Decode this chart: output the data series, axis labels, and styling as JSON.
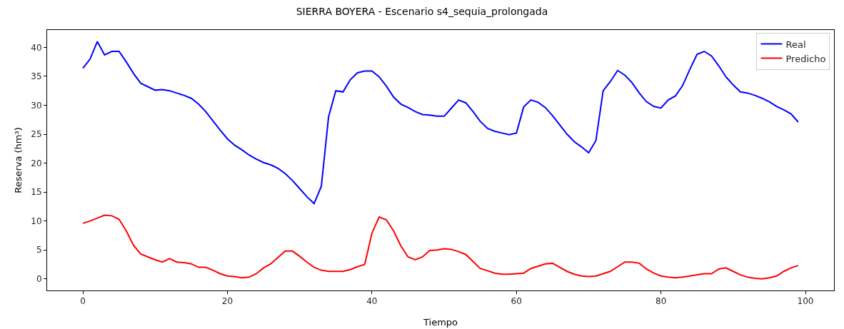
{
  "chart_data": {
    "type": "line",
    "title": "SIERRA BOYERA - Escenario s4_sequia_prolongada",
    "xlabel": "Tiempo",
    "ylabel": "Reserva (hm³)",
    "x": [
      0,
      1,
      2,
      3,
      4,
      5,
      6,
      7,
      8,
      9,
      10,
      11,
      12,
      13,
      14,
      15,
      16,
      17,
      18,
      19,
      20,
      21,
      22,
      23,
      24,
      25,
      26,
      27,
      28,
      29,
      30,
      31,
      32,
      33,
      34,
      35,
      36,
      37,
      38,
      39,
      40,
      41,
      42,
      43,
      44,
      45,
      46,
      47,
      48,
      49,
      50,
      51,
      52,
      53,
      54,
      55,
      56,
      57,
      58,
      59,
      60,
      61,
      62,
      63,
      64,
      65,
      66,
      67,
      68,
      69,
      70,
      71,
      72,
      73,
      74,
      75,
      76,
      77,
      78,
      79,
      80,
      81,
      82,
      83,
      84,
      85,
      86,
      87,
      88,
      89,
      90,
      91,
      92,
      93,
      94,
      95,
      96,
      97,
      98,
      99
    ],
    "series": [
      {
        "name": "Real",
        "color": "#0000ff",
        "values": [
          36.4,
          38,
          41,
          38.7,
          39.3,
          39.3,
          37.5,
          35.5,
          33.8,
          33.2,
          32.6,
          32.7,
          32.5,
          32.1,
          31.7,
          31.2,
          30.2,
          28.9,
          27.3,
          25.7,
          24.2,
          23.1,
          22.3,
          21.4,
          20.7,
          20.1,
          19.7,
          19.1,
          18.2,
          17.0,
          15.6,
          14.2,
          13.0,
          16.0,
          28.0,
          32.5,
          32.3,
          34.4,
          35.6,
          35.9,
          35.9,
          34.9,
          33.3,
          31.4,
          30.2,
          29.6,
          28.9,
          28.4,
          28.3,
          28.1,
          28.1,
          29.5,
          30.9,
          30.4,
          28.9,
          27.2,
          26.0,
          25.5,
          25.2,
          24.9,
          25.2,
          29.7,
          30.9,
          30.5,
          29.6,
          28.2,
          26.6,
          25.0,
          23.7,
          22.8,
          21.8,
          23.9,
          32.5,
          34.1,
          36.0,
          35.2,
          33.9,
          32.1,
          30.6,
          29.8,
          29.5,
          30.9,
          31.6,
          33.4,
          36.2,
          38.8,
          39.3,
          38.5,
          36.8,
          34.9,
          33.5,
          32.3,
          32.1,
          31.7,
          31.2,
          30.6,
          29.8,
          29.2,
          28.5,
          27.1
        ]
      },
      {
        "name": "Predicho",
        "color": "#ff0000",
        "values": [
          9.6,
          10.0,
          10.5,
          11.0,
          10.9,
          10.3,
          8.3,
          5.8,
          4.3,
          3.8,
          3.3,
          2.9,
          3.5,
          2.9,
          2.8,
          2.6,
          2.0,
          2.0,
          1.5,
          0.9,
          0.5,
          0.4,
          0.2,
          0.3,
          0.9,
          1.9,
          2.6,
          3.7,
          4.8,
          4.8,
          3.9,
          2.9,
          2.0,
          1.5,
          1.3,
          1.3,
          1.3,
          1.6,
          2.1,
          2.5,
          7.9,
          10.7,
          10.2,
          8.3,
          5.7,
          3.8,
          3.3,
          3.8,
          4.9,
          5.0,
          5.2,
          5.1,
          4.7,
          4.2,
          3.0,
          1.8,
          1.4,
          1.0,
          0.8,
          0.8,
          0.9,
          1.0,
          1.8,
          2.2,
          2.6,
          2.7,
          2.0,
          1.3,
          0.8,
          0.5,
          0.4,
          0.5,
          0.9,
          1.3,
          2.1,
          2.9,
          2.9,
          2.7,
          1.7,
          1.0,
          0.5,
          0.3,
          0.2,
          0.3,
          0.5,
          0.7,
          0.9,
          0.9,
          1.7,
          1.9,
          1.3,
          0.7,
          0.3,
          0.1,
          0.0,
          0.2,
          0.5,
          1.3,
          1.9,
          2.3
        ]
      }
    ],
    "xlim": [
      -4.95,
      103.95
    ],
    "xticks": [
      0,
      20,
      40,
      60,
      80,
      100
    ],
    "ylim": [
      -2,
      43
    ],
    "yticks": [
      0,
      5,
      10,
      15,
      20,
      25,
      30,
      35,
      40
    ],
    "grid": false,
    "legend": "top right",
    "marker": "none",
    "line_style": "solid"
  }
}
